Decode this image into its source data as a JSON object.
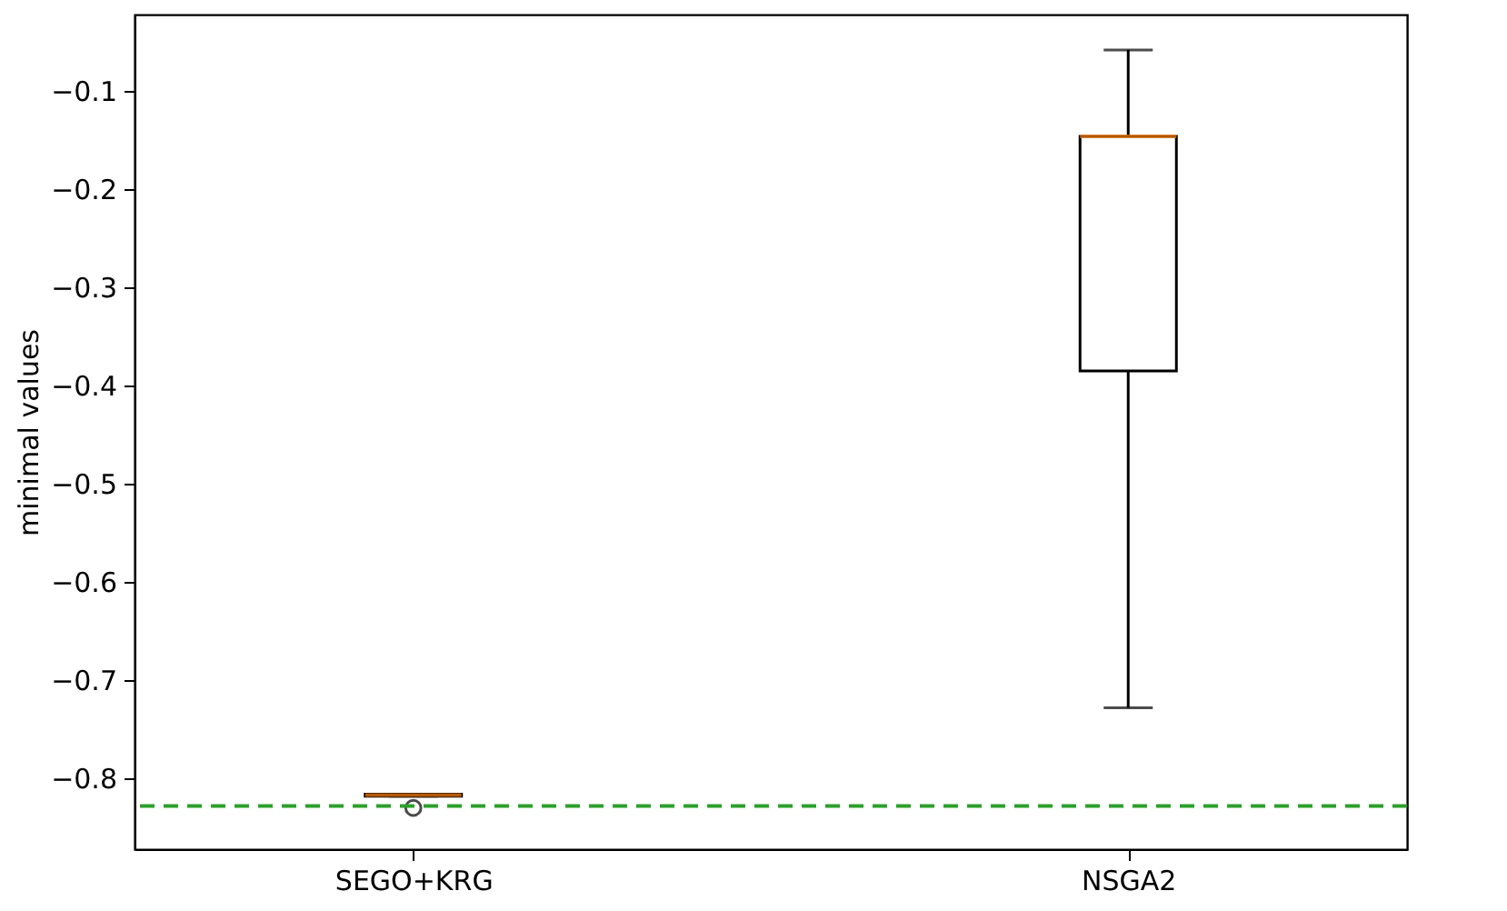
{
  "chart_data": {
    "type": "box",
    "ylabel": "minimal values",
    "categories": [
      "SEGO+KRG",
      "NSGA2"
    ],
    "boxes": [
      {
        "low": -0.818,
        "q1": -0.818,
        "median": -0.817,
        "q3": -0.816,
        "high": -0.816,
        "outliers": [
          -0.83
        ]
      },
      {
        "low": -0.728,
        "q1": -0.385,
        "median": -0.146,
        "q3": -0.146,
        "high": -0.058
      }
    ],
    "ylim": [
      -0.872,
      -0.022
    ],
    "yticks": [
      {
        "value": -0.8,
        "label": "−0.8"
      },
      {
        "value": -0.7,
        "label": "−0.7"
      },
      {
        "value": -0.6,
        "label": "−0.6"
      },
      {
        "value": -0.5,
        "label": "−0.5"
      },
      {
        "value": -0.4,
        "label": "−0.4"
      },
      {
        "value": -0.3,
        "label": "−0.3"
      },
      {
        "value": -0.2,
        "label": "−0.2"
      },
      {
        "value": -0.1,
        "label": "−0.1"
      }
    ],
    "ref_lines": [
      {
        "axis": "y",
        "value": -0.828,
        "color": "#2ca02c",
        "line_style": "dashed"
      }
    ],
    "grid": false
  }
}
